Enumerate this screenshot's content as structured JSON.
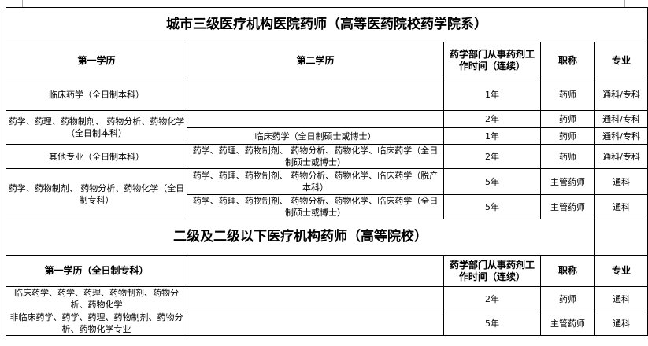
{
  "section1": {
    "title": "城市三级医疗机构医院药师（高等医药院校药学院系）",
    "headers": [
      "第一学历",
      "第二学历",
      "药学部门从事药剂工作时间（连续）",
      "职称",
      "专业"
    ],
    "rows": [
      {
        "first": "临床药学（全日制本科）",
        "second": "",
        "time": "1年",
        "title": "药师",
        "major": "通科/专科"
      },
      {
        "first": "药学、药理、药物制剂、 药物分析、药物化学（全日制本科）",
        "second": "",
        "time": "2年",
        "title": "药师",
        "major": "通科/专科"
      },
      {
        "second": "临床药学（全日制硕士或博士）",
        "time": "1年",
        "title": "药师",
        "major": "通科/专科"
      },
      {
        "first": "其他专业（全日制本科）",
        "second": "药学、药理、药物制剂、 药物分析、药物化学、临床药学（全日制硕士或博士）",
        "time": "2年",
        "title": "药师",
        "major": "通科/专科"
      },
      {
        "first": "药学、药物制剂、 药物分析、药物化学（全日制专科）",
        "second": "药学、药理、药物制剂、 药物分析、药物化学、临床药学（脱产本科）",
        "time": "5年",
        "title": "主管药师",
        "major": "通科"
      },
      {
        "second": "药学、药理、药物制剂、 药物分析、药物化学、临床药学（全日制硕士或博士）",
        "time": "5年",
        "title": "主管药师",
        "major": "通科"
      }
    ]
  },
  "section2": {
    "title": "二级及二级以下医疗机构药师（高等院校）",
    "headers": [
      "第一学历（全日制专科）",
      "",
      "药学部门从事药剂工作时间（连续）",
      "职称",
      "专业"
    ],
    "rows": [
      {
        "first": "临床药学、药学、药理、药物制剂、药物分析、药物化学",
        "second": "",
        "time": "2年",
        "title": "药师",
        "major": "通科"
      },
      {
        "first": "非临床药学、药学、药理、药物制剂、药物分析、药物化学专业",
        "second": "",
        "time": "5年",
        "title": "主管药师",
        "major": "通科"
      }
    ]
  }
}
